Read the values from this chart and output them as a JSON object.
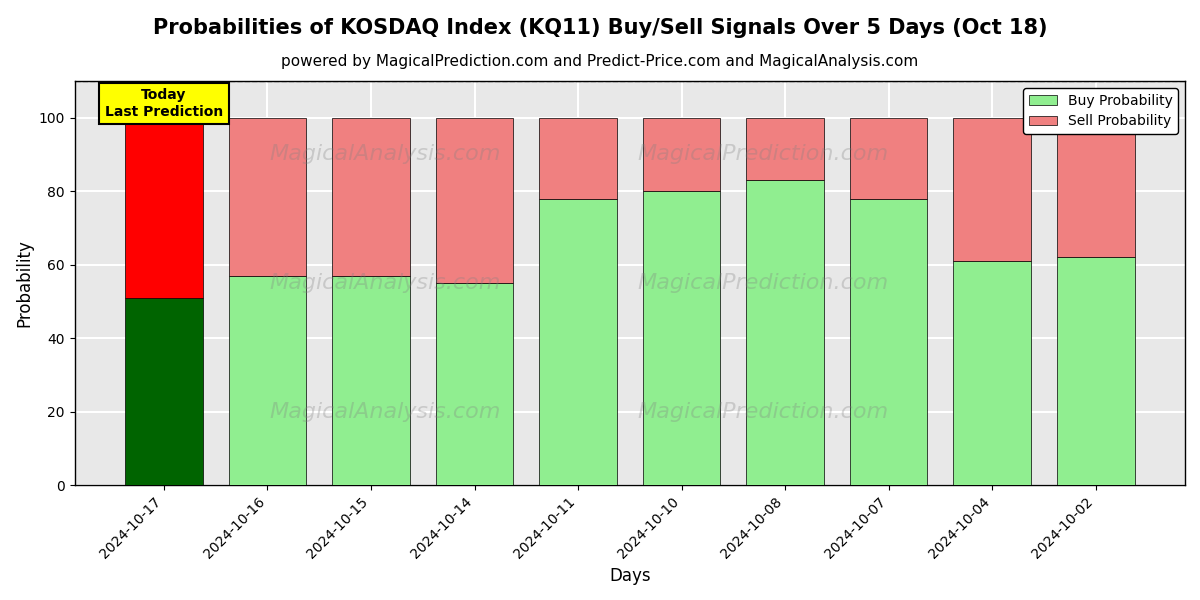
{
  "title": "Probabilities of KOSDAQ Index (KQ11) Buy/Sell Signals Over 5 Days (Oct 18)",
  "subtitle": "powered by MagicalPrediction.com and Predict-Price.com and MagicalAnalysis.com",
  "xlabel": "Days",
  "ylabel": "Probability",
  "dates": [
    "2024-10-17",
    "2024-10-16",
    "2024-10-15",
    "2024-10-14",
    "2024-10-11",
    "2024-10-10",
    "2024-10-08",
    "2024-10-07",
    "2024-10-04",
    "2024-10-02"
  ],
  "buy_values": [
    51,
    57,
    57,
    55,
    78,
    80,
    83,
    78,
    61,
    62
  ],
  "sell_values": [
    49,
    43,
    43,
    45,
    22,
    20,
    17,
    22,
    39,
    38
  ],
  "today_buy_color": "#006400",
  "today_sell_color": "#FF0000",
  "buy_color": "#90EE90",
  "sell_color": "#F08080",
  "today_label_bg": "#FFFF00",
  "ylim": [
    0,
    110
  ],
  "dashed_line_y": 110,
  "watermark_text1": "MagicalAnalysis.com",
  "watermark_text2": "MagicalPrediction.com",
  "axes_facecolor": "#e8e8e8",
  "background_color": "#ffffff",
  "grid_color": "#ffffff",
  "legend_labels": [
    "Buy Probability",
    "Sell Probability"
  ],
  "title_fontsize": 15,
  "subtitle_fontsize": 11,
  "bar_width": 0.75
}
